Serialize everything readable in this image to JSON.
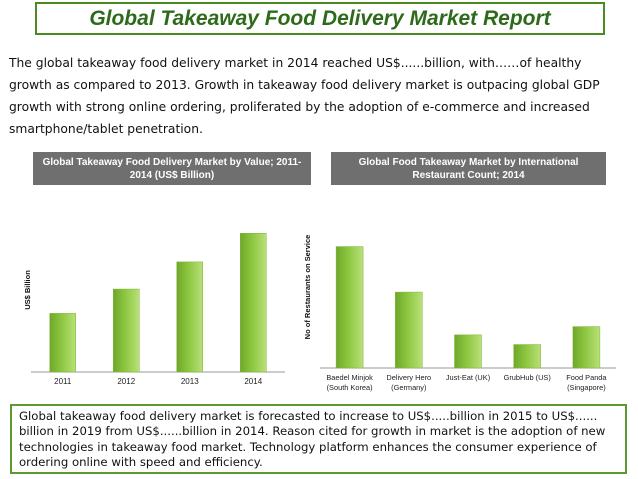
{
  "header": {
    "title": "Global Takeaway Food Delivery Market Report"
  },
  "intro": {
    "text": "The global takeaway food delivery market in 2014 reached US$......billion, with……of healthy growth as compared to 2013. Growth in takeaway food delivery market is outpacing global GDP growth with strong online ordering, proliferated by the adoption of e-commerce and increased smartphone/tablet penetration."
  },
  "summary": {
    "text": "Global takeaway food delivery market is forecasted to increase to US$.....billion in 2015 to US$...... billion in 2019 from US$......billion in 2014. Reason cited for growth in market is the adoption of new technologies in takeaway food market. Technology platform enhances the consumer experience of ordering online with speed and efficiency."
  },
  "colors": {
    "title_border": "#4c8b1f",
    "title_text": "#2d6a1a",
    "bar": "#8dc63f",
    "panel_head": "#6f6f6f",
    "summary_border": "#5c9a2f"
  },
  "chart_data": [
    {
      "type": "bar",
      "title": "Global Takeaway Food Delivery  Market by Value; 2011-2014 (US$ Billion)",
      "categories": [
        "2011",
        "2012",
        "2013",
        "2014"
      ],
      "values": [
        41,
        58,
        77,
        97
      ],
      "ylabel": "US$ Billion",
      "xlabel": "",
      "ylim": [
        0,
        100
      ],
      "y_tick_labels_shown": false,
      "grid": false
    },
    {
      "type": "bar",
      "title": "Global Food Takeaway Market by International Restaurant Count; 2014",
      "categories": [
        "Baedel Minjok\n(South Korea)",
        "Delivery Hero\n(Germany)",
        "Just-Eat (UK)",
        "GrubHub (US)",
        "Food Panda\n(Singapore)"
      ],
      "values": [
        88,
        55,
        24,
        17,
        30
      ],
      "ylabel": "No of Restaurants on Service",
      "xlabel": "",
      "ylim": [
        0,
        100
      ],
      "y_tick_labels_shown": false,
      "grid": false
    }
  ]
}
